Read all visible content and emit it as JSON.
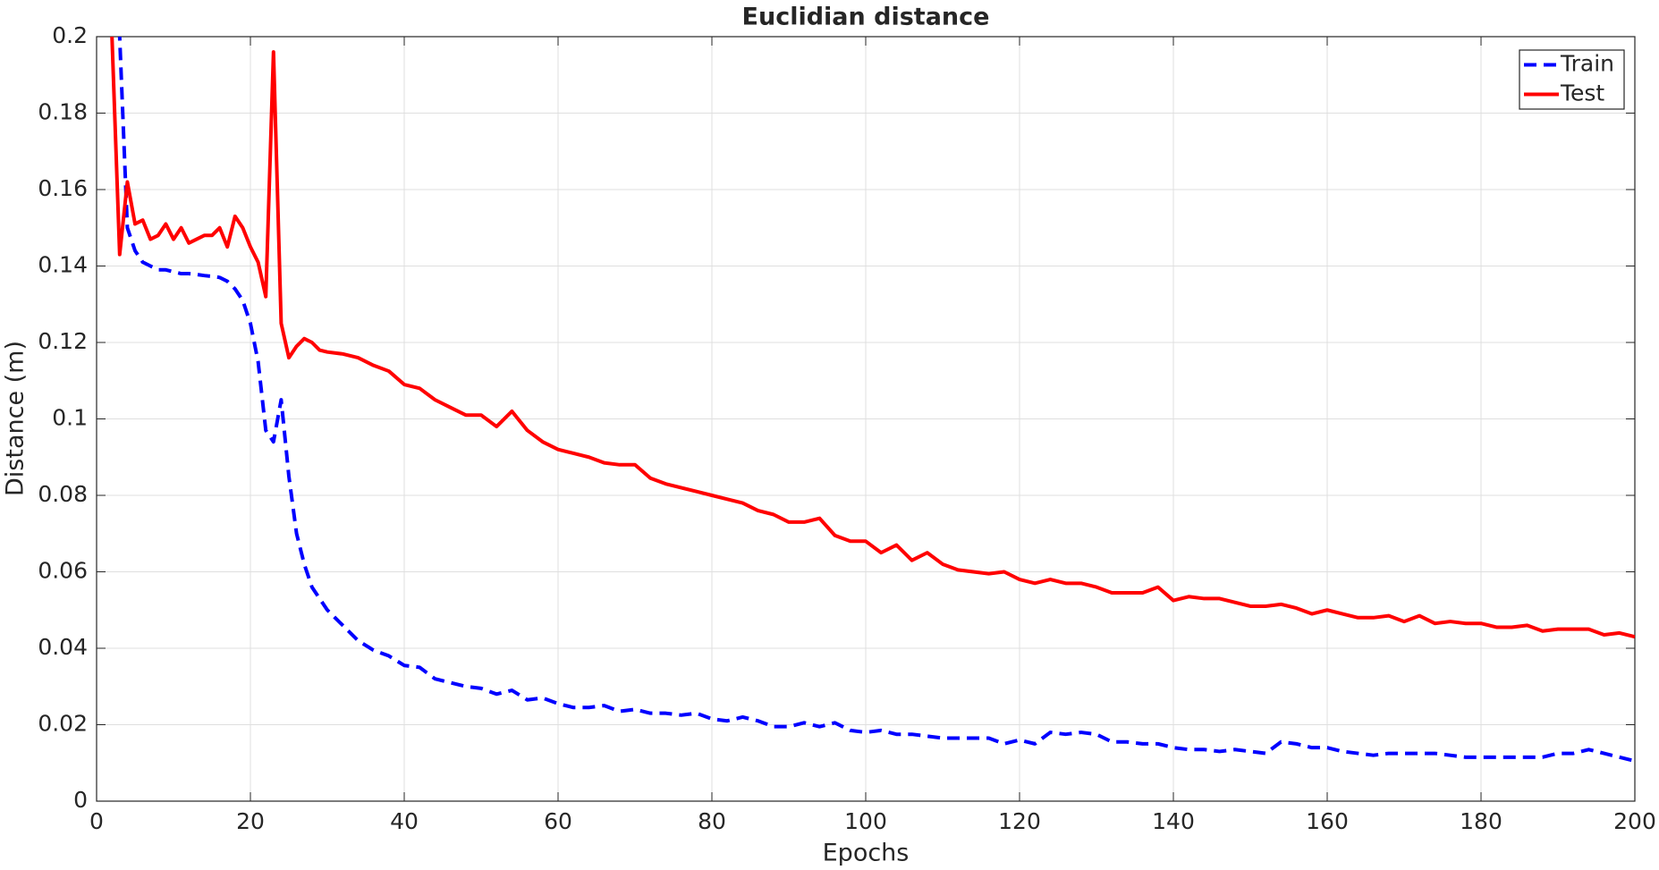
{
  "chart_data": {
    "type": "line",
    "title": "Euclidian distance",
    "xlabel": "Epochs",
    "ylabel": "Distance (m)",
    "x": [
      2,
      3,
      4,
      5,
      6,
      7,
      8,
      9,
      10,
      11,
      12,
      13,
      14,
      15,
      16,
      17,
      18,
      19,
      20,
      21,
      22,
      23,
      24,
      25,
      26,
      27,
      28,
      29,
      30,
      32,
      34,
      36,
      38,
      40,
      42,
      44,
      46,
      48,
      50,
      52,
      54,
      56,
      58,
      60,
      62,
      64,
      66,
      68,
      70,
      72,
      74,
      76,
      78,
      80,
      82,
      84,
      86,
      88,
      90,
      92,
      94,
      96,
      98,
      100,
      102,
      104,
      106,
      108,
      110,
      112,
      114,
      116,
      118,
      120,
      122,
      124,
      126,
      128,
      130,
      132,
      134,
      136,
      138,
      140,
      142,
      144,
      146,
      148,
      150,
      152,
      154,
      156,
      158,
      160,
      162,
      164,
      166,
      168,
      170,
      172,
      174,
      176,
      178,
      180,
      182,
      184,
      186,
      188,
      190,
      192,
      194,
      196,
      198,
      200
    ],
    "series": [
      {
        "name": "Train",
        "color": "#0000ff",
        "dashed": true,
        "values": [
          0.3,
          0.2,
          0.15,
          0.144,
          0.141,
          0.14,
          0.139,
          0.139,
          0.1385,
          0.138,
          0.138,
          0.1378,
          0.1375,
          0.1373,
          0.137,
          0.136,
          0.134,
          0.131,
          0.125,
          0.115,
          0.097,
          0.094,
          0.105,
          0.085,
          0.07,
          0.062,
          0.056,
          0.053,
          0.05,
          0.046,
          0.042,
          0.0395,
          0.038,
          0.0355,
          0.035,
          0.032,
          0.031,
          0.03,
          0.0295,
          0.028,
          0.029,
          0.0265,
          0.027,
          0.0255,
          0.0245,
          0.0245,
          0.025,
          0.0235,
          0.024,
          0.023,
          0.023,
          0.0225,
          0.023,
          0.0215,
          0.021,
          0.022,
          0.021,
          0.0195,
          0.0195,
          0.0205,
          0.0195,
          0.0205,
          0.0185,
          0.018,
          0.0185,
          0.0175,
          0.0175,
          0.017,
          0.0165,
          0.0165,
          0.0165,
          0.0165,
          0.015,
          0.016,
          0.015,
          0.018,
          0.0175,
          0.018,
          0.0175,
          0.0155,
          0.0155,
          0.015,
          0.015,
          0.014,
          0.0135,
          0.0135,
          0.013,
          0.0135,
          0.013,
          0.0125,
          0.0155,
          0.015,
          0.014,
          0.014,
          0.013,
          0.0125,
          0.012,
          0.0125,
          0.0125,
          0.0125,
          0.0125,
          0.012,
          0.0115,
          0.0115,
          0.0115,
          0.0115,
          0.0115,
          0.0115,
          0.0125,
          0.0125,
          0.0135,
          0.0125,
          0.0115,
          0.0105
        ]
      },
      {
        "name": "Test",
        "color": "#ff0000",
        "dashed": false,
        "values": [
          0.2,
          0.143,
          0.162,
          0.151,
          0.152,
          0.147,
          0.148,
          0.151,
          0.147,
          0.15,
          0.146,
          0.147,
          0.148,
          0.148,
          0.15,
          0.145,
          0.153,
          0.15,
          0.145,
          0.141,
          0.132,
          0.196,
          0.125,
          0.116,
          0.119,
          0.121,
          0.12,
          0.118,
          0.1175,
          0.117,
          0.116,
          0.114,
          0.1125,
          0.109,
          0.108,
          0.105,
          0.103,
          0.101,
          0.101,
          0.098,
          0.102,
          0.097,
          0.094,
          0.092,
          0.091,
          0.09,
          0.0885,
          0.088,
          0.088,
          0.0845,
          0.083,
          0.082,
          0.081,
          0.08,
          0.079,
          0.078,
          0.076,
          0.075,
          0.073,
          0.073,
          0.074,
          0.0695,
          0.068,
          0.068,
          0.065,
          0.067,
          0.063,
          0.065,
          0.062,
          0.0605,
          0.06,
          0.0595,
          0.06,
          0.058,
          0.057,
          0.058,
          0.057,
          0.057,
          0.056,
          0.0545,
          0.0545,
          0.0545,
          0.056,
          0.0525,
          0.0535,
          0.053,
          0.053,
          0.052,
          0.051,
          0.051,
          0.0515,
          0.0505,
          0.049,
          0.05,
          0.049,
          0.048,
          0.048,
          0.0485,
          0.047,
          0.0485,
          0.0465,
          0.047,
          0.0465,
          0.0465,
          0.0455,
          0.0455,
          0.046,
          0.0445,
          0.045,
          0.045,
          0.045,
          0.0435,
          0.044,
          0.043
        ]
      }
    ],
    "xlim": [
      0,
      200
    ],
    "xticks": [
      0,
      20,
      40,
      60,
      80,
      100,
      120,
      140,
      160,
      180,
      200
    ],
    "ylim": [
      0,
      0.2
    ],
    "yticks": [
      0,
      0.02,
      0.04,
      0.06,
      0.08,
      0.1,
      0.12,
      0.14,
      0.16,
      0.18,
      0.2
    ],
    "grid": true,
    "legend": "northeast"
  }
}
